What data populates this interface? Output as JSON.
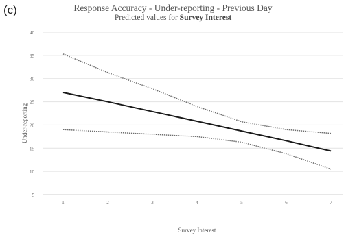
{
  "panel_label": "(c)",
  "chart_data": {
    "type": "line",
    "title": "Response Accuracy - Under-reporting - Previous Day",
    "subtitle_prefix": "Predicted values for",
    "subtitle_emphasis": "Survey Interest",
    "xlabel": "Survey Interest",
    "ylabel": "Under-reporting",
    "x": [
      1,
      2,
      3,
      4,
      5,
      6,
      7
    ],
    "x_tick_labels": [
      "1",
      "2",
      "3",
      "4",
      "5",
      "6",
      "7"
    ],
    "ylim": [
      5,
      40
    ],
    "y_ticks": [
      5,
      10,
      15,
      20,
      25,
      30,
      35,
      40
    ],
    "grid": "horizontal",
    "series": [
      {
        "role": "predicted",
        "style": "solid",
        "color": "#1a1a1a",
        "values": [
          27.0,
          25.0,
          22.9,
          20.8,
          18.7,
          16.6,
          14.4
        ]
      },
      {
        "role": "upper-bound",
        "style": "dotted",
        "color": "#6e6e6e",
        "values": [
          35.3,
          31.3,
          27.8,
          24.0,
          20.7,
          19.0,
          18.2
        ]
      },
      {
        "role": "lower-bound",
        "style": "dotted",
        "color": "#6e6e6e",
        "values": [
          19.0,
          18.5,
          18.0,
          17.5,
          16.3,
          13.8,
          10.5
        ]
      }
    ]
  }
}
